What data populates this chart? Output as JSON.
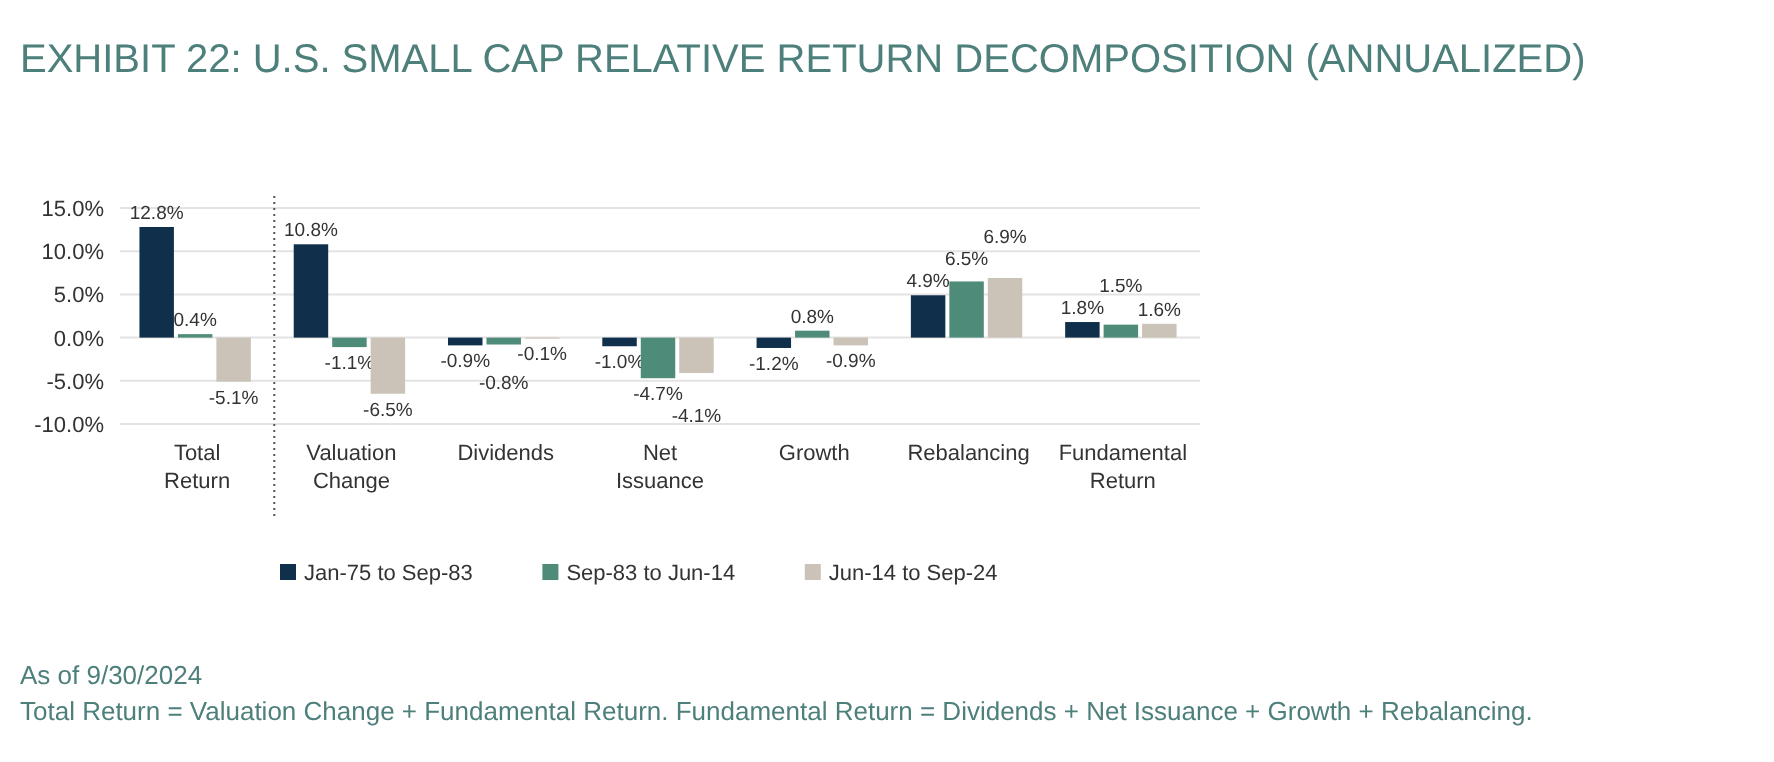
{
  "chart_data": {
    "type": "bar",
    "title": "EXHIBIT 22: U.S. SMALL CAP RELATIVE RETURN DECOMPOSITION (ANNUALIZED)",
    "categories": [
      "Total Return",
      "Valuation Change",
      "Dividends",
      "Net Issuance",
      "Growth",
      "Rebalancing",
      "Fundamental Return"
    ],
    "series": [
      {
        "name": "Jan-75 to Sep-83",
        "color": "#0f2f4a",
        "values": [
          12.8,
          10.8,
          -0.9,
          -1.0,
          -1.2,
          4.9,
          1.8
        ],
        "value_labels": [
          "12.8%",
          "10.8%",
          "-0.9%",
          "-1.0%",
          "-1.2%",
          "4.9%",
          "1.8%"
        ]
      },
      {
        "name": "Sep-83 to Jun-14",
        "color": "#4f8b79",
        "values": [
          0.4,
          -1.1,
          -0.8,
          -4.7,
          0.8,
          6.5,
          1.5
        ],
        "value_labels": [
          "0.4%",
          "-1.1%",
          "-0.8%",
          "-4.7%",
          "0.8%",
          "6.5%",
          "1.5%"
        ]
      },
      {
        "name": "Jun-14 to Sep-24",
        "color": "#cbc3b8",
        "values": [
          -5.1,
          -6.5,
          -0.1,
          -4.1,
          -0.9,
          6.9,
          1.6
        ],
        "value_labels": [
          "-5.1%",
          "-6.5%",
          "-0.1%",
          "-4.1%",
          "-0.9%",
          "6.9%",
          "1.6%"
        ]
      }
    ],
    "ylim": [
      -10,
      15
    ],
    "yticks": [
      {
        "value": -10,
        "label": "-10.0%"
      },
      {
        "value": -5,
        "label": "-5.0%"
      },
      {
        "value": 0,
        "label": "0.0%"
      },
      {
        "value": 5,
        "label": "5.0%"
      },
      {
        "value": 10,
        "label": "10.0%"
      },
      {
        "value": 15,
        "label": "15.0%"
      }
    ],
    "grid": "y",
    "legend": "bottom",
    "annotations": [
      "As of 9/30/2024",
      "Total Return = Valuation Change + Fundamental Return. Fundamental Return = Dividends + Net Issuance + Growth + Rebalancing."
    ]
  }
}
